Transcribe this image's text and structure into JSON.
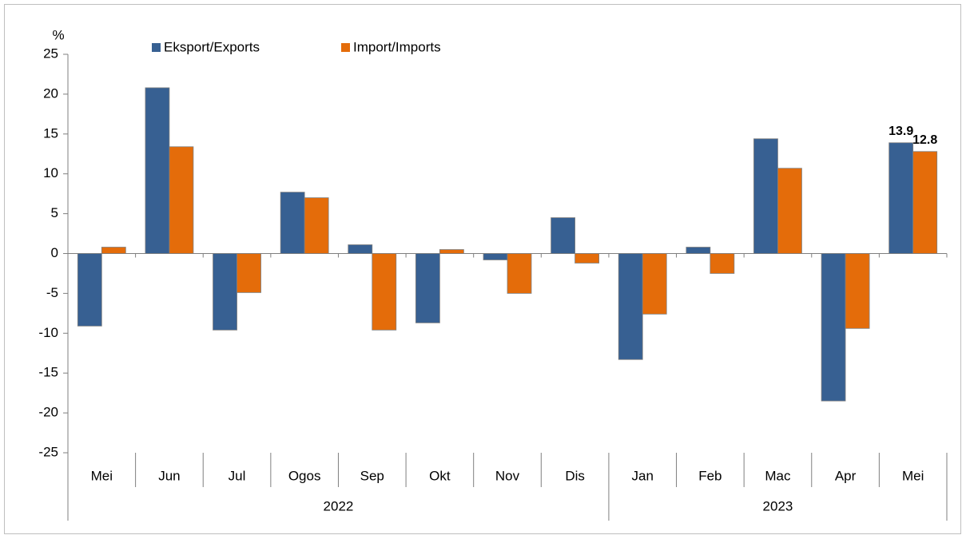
{
  "chart_data": {
    "type": "bar",
    "y_label": "%",
    "categories": [
      "Mei",
      "Jun",
      "Jul",
      "Ogos",
      "Sep",
      "Okt",
      "Nov",
      "Dis",
      "Jan",
      "Feb",
      "Mac",
      "Apr",
      "Mei"
    ],
    "groups": [
      {
        "name": "2022",
        "count": 8
      },
      {
        "name": "2023",
        "count": 5
      }
    ],
    "series": [
      {
        "name": "Eksport/Exports",
        "color": "#376092",
        "values": [
          -9.1,
          20.8,
          -9.6,
          7.7,
          1.1,
          -8.7,
          -0.8,
          4.5,
          -13.3,
          0.8,
          14.4,
          -18.5,
          13.9
        ],
        "value_labels": [
          null,
          null,
          null,
          null,
          null,
          null,
          null,
          null,
          null,
          null,
          null,
          null,
          "13.9"
        ]
      },
      {
        "name": "Import/Imports",
        "color": "#e46c0a",
        "values": [
          0.8,
          13.4,
          -4.9,
          7.0,
          -9.6,
          0.5,
          -5.0,
          -1.2,
          -7.6,
          -2.5,
          10.7,
          -9.4,
          12.8
        ],
        "value_labels": [
          null,
          null,
          null,
          null,
          null,
          null,
          null,
          null,
          null,
          null,
          null,
          null,
          "12.8"
        ]
      }
    ],
    "ylim": [
      -25,
      25
    ],
    "yticks": [
      -25,
      -20,
      -15,
      -10,
      -5,
      0,
      5,
      10,
      15,
      20,
      25
    ],
    "legend": "top",
    "grid": false
  }
}
